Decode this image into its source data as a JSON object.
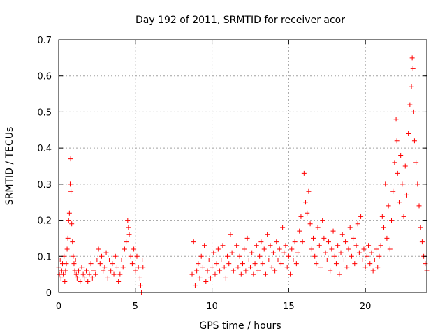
{
  "chart_data": {
    "type": "scatter",
    "title": "Day 192 of 2011, SRMTID for receiver acor",
    "xlabel": "GPS time / hours",
    "ylabel": "SRMTID / TECUs",
    "xlim": [
      0,
      24
    ],
    "ylim": [
      0,
      0.7
    ],
    "xticks": [
      0,
      5,
      10,
      15,
      20
    ],
    "yticks": [
      0,
      0.1,
      0.2,
      0.3,
      0.4,
      0.5,
      0.6,
      0.7
    ],
    "xtick_labels": [
      "0",
      "5",
      "10",
      "15",
      "20"
    ],
    "ytick_labels": [
      "0",
      "0.1",
      "0.2",
      "0.3",
      "0.4",
      "0.5",
      "0.6",
      "0.7"
    ],
    "grid": true,
    "marker": "plus",
    "marker_color": "#ff0000",
    "series": [
      {
        "name": "SRMTID",
        "points": [
          [
            0.0,
            0.07
          ],
          [
            0.05,
            0.05
          ],
          [
            0.1,
            0.09
          ],
          [
            0.15,
            0.04
          ],
          [
            0.2,
            0.06
          ],
          [
            0.25,
            0.08
          ],
          [
            0.3,
            0.05
          ],
          [
            0.35,
            0.1
          ],
          [
            0.4,
            0.03
          ],
          [
            0.45,
            0.06
          ],
          [
            0.5,
            0.08
          ],
          [
            0.55,
            0.12
          ],
          [
            0.6,
            0.15
          ],
          [
            0.65,
            0.2
          ],
          [
            0.7,
            0.22
          ],
          [
            0.75,
            0.3
          ],
          [
            0.78,
            0.37
          ],
          [
            0.8,
            0.28
          ],
          [
            0.85,
            0.19
          ],
          [
            0.9,
            0.14
          ],
          [
            0.95,
            0.1
          ],
          [
            1.0,
            0.08
          ],
          [
            1.05,
            0.06
          ],
          [
            1.1,
            0.09
          ],
          [
            1.15,
            0.05
          ],
          [
            1.2,
            0.04
          ],
          [
            1.3,
            0.06
          ],
          [
            1.4,
            0.03
          ],
          [
            1.5,
            0.07
          ],
          [
            1.6,
            0.05
          ],
          [
            1.7,
            0.04
          ],
          [
            1.8,
            0.06
          ],
          [
            1.9,
            0.03
          ],
          [
            2.0,
            0.05
          ],
          [
            2.1,
            0.08
          ],
          [
            2.2,
            0.04
          ],
          [
            2.3,
            0.06
          ],
          [
            2.4,
            0.05
          ],
          [
            2.5,
            0.09
          ],
          [
            2.6,
            0.12
          ],
          [
            2.7,
            0.08
          ],
          [
            2.8,
            0.1
          ],
          [
            2.9,
            0.06
          ],
          [
            3.0,
            0.07
          ],
          [
            3.1,
            0.11
          ],
          [
            3.2,
            0.04
          ],
          [
            3.3,
            0.09
          ],
          [
            3.4,
            0.06
          ],
          [
            3.5,
            0.08
          ],
          [
            3.6,
            0.05
          ],
          [
            3.7,
            0.1
          ],
          [
            3.8,
            0.07
          ],
          [
            3.9,
            0.03
          ],
          [
            4.0,
            0.05
          ],
          [
            4.1,
            0.09
          ],
          [
            4.2,
            0.07
          ],
          [
            4.3,
            0.12
          ],
          [
            4.4,
            0.14
          ],
          [
            4.5,
            0.2
          ],
          [
            4.55,
            0.18
          ],
          [
            4.6,
            0.16
          ],
          [
            4.7,
            0.1
          ],
          [
            4.8,
            0.08
          ],
          [
            4.9,
            0.12
          ],
          [
            5.0,
            0.06
          ],
          [
            5.1,
            0.1
          ],
          [
            5.2,
            0.07
          ],
          [
            5.3,
            0.04
          ],
          [
            5.35,
            0.02
          ],
          [
            5.4,
            0.0
          ],
          [
            5.45,
            0.09
          ],
          [
            5.5,
            0.07
          ],
          [
            8.7,
            0.05
          ],
          [
            8.8,
            0.14
          ],
          [
            8.9,
            0.02
          ],
          [
            9.0,
            0.06
          ],
          [
            9.1,
            0.08
          ],
          [
            9.2,
            0.04
          ],
          [
            9.3,
            0.1
          ],
          [
            9.4,
            0.07
          ],
          [
            9.5,
            0.13
          ],
          [
            9.6,
            0.03
          ],
          [
            9.7,
            0.06
          ],
          [
            9.8,
            0.09
          ],
          [
            9.9,
            0.04
          ],
          [
            10.0,
            0.07
          ],
          [
            10.1,
            0.11
          ],
          [
            10.2,
            0.05
          ],
          [
            10.3,
            0.08
          ],
          [
            10.4,
            0.12
          ],
          [
            10.5,
            0.06
          ],
          [
            10.6,
            0.09
          ],
          [
            10.7,
            0.13
          ],
          [
            10.8,
            0.07
          ],
          [
            10.9,
            0.04
          ],
          [
            11.0,
            0.1
          ],
          [
            11.1,
            0.08
          ],
          [
            11.2,
            0.16
          ],
          [
            11.3,
            0.11
          ],
          [
            11.4,
            0.06
          ],
          [
            11.5,
            0.09
          ],
          [
            11.6,
            0.13
          ],
          [
            11.7,
            0.07
          ],
          [
            11.8,
            0.1
          ],
          [
            11.9,
            0.05
          ],
          [
            12.0,
            0.08
          ],
          [
            12.1,
            0.12
          ],
          [
            12.2,
            0.06
          ],
          [
            12.3,
            0.15
          ],
          [
            12.4,
            0.09
          ],
          [
            12.5,
            0.07
          ],
          [
            12.6,
            0.11
          ],
          [
            12.7,
            0.05
          ],
          [
            12.8,
            0.08
          ],
          [
            12.9,
            0.13
          ],
          [
            13.0,
            0.06
          ],
          [
            13.1,
            0.1
          ],
          [
            13.2,
            0.14
          ],
          [
            13.3,
            0.08
          ],
          [
            13.4,
            0.12
          ],
          [
            13.5,
            0.05
          ],
          [
            13.6,
            0.16
          ],
          [
            13.7,
            0.09
          ],
          [
            13.8,
            0.13
          ],
          [
            13.9,
            0.07
          ],
          [
            14.0,
            0.11
          ],
          [
            14.1,
            0.06
          ],
          [
            14.2,
            0.14
          ],
          [
            14.3,
            0.09
          ],
          [
            14.4,
            0.12
          ],
          [
            14.5,
            0.08
          ],
          [
            14.6,
            0.18
          ],
          [
            14.7,
            0.11
          ],
          [
            14.8,
            0.13
          ],
          [
            14.9,
            0.07
          ],
          [
            15.0,
            0.1
          ],
          [
            15.1,
            0.05
          ],
          [
            15.2,
            0.12
          ],
          [
            15.3,
            0.09
          ],
          [
            15.4,
            0.14
          ],
          [
            15.5,
            0.08
          ],
          [
            15.6,
            0.11
          ],
          [
            15.7,
            0.17
          ],
          [
            15.8,
            0.21
          ],
          [
            15.9,
            0.14
          ],
          [
            16.0,
            0.33
          ],
          [
            16.1,
            0.25
          ],
          [
            16.2,
            0.22
          ],
          [
            16.3,
            0.28
          ],
          [
            16.4,
            0.19
          ],
          [
            16.5,
            0.12
          ],
          [
            16.6,
            0.15
          ],
          [
            16.7,
            0.1
          ],
          [
            16.8,
            0.08
          ],
          [
            16.9,
            0.18
          ],
          [
            17.0,
            0.13
          ],
          [
            17.1,
            0.07
          ],
          [
            17.2,
            0.2
          ],
          [
            17.3,
            0.15
          ],
          [
            17.4,
            0.11
          ],
          [
            17.5,
            0.09
          ],
          [
            17.6,
            0.14
          ],
          [
            17.7,
            0.06
          ],
          [
            17.8,
            0.12
          ],
          [
            17.9,
            0.17
          ],
          [
            18.0,
            0.1
          ],
          [
            18.1,
            0.08
          ],
          [
            18.2,
            0.13
          ],
          [
            18.3,
            0.05
          ],
          [
            18.4,
            0.11
          ],
          [
            18.5,
            0.16
          ],
          [
            18.6,
            0.09
          ],
          [
            18.7,
            0.14
          ],
          [
            18.8,
            0.07
          ],
          [
            18.9,
            0.12
          ],
          [
            19.0,
            0.18
          ],
          [
            19.1,
            0.1
          ],
          [
            19.2,
            0.15
          ],
          [
            19.3,
            0.08
          ],
          [
            19.4,
            0.13
          ],
          [
            19.5,
            0.19
          ],
          [
            19.6,
            0.11
          ],
          [
            19.7,
            0.21
          ],
          [
            19.8,
            0.09
          ],
          [
            19.9,
            0.12
          ],
          [
            20.0,
            0.07
          ],
          [
            20.1,
            0.1
          ],
          [
            20.2,
            0.13
          ],
          [
            20.3,
            0.08
          ],
          [
            20.4,
            0.11
          ],
          [
            20.5,
            0.06
          ],
          [
            20.6,
            0.09
          ],
          [
            20.7,
            0.12
          ],
          [
            20.8,
            0.07
          ],
          [
            20.9,
            0.1
          ],
          [
            21.0,
            0.13
          ],
          [
            21.1,
            0.21
          ],
          [
            21.2,
            0.18
          ],
          [
            21.3,
            0.3
          ],
          [
            21.4,
            0.15
          ],
          [
            21.5,
            0.24
          ],
          [
            21.6,
            0.12
          ],
          [
            21.7,
            0.2
          ],
          [
            21.8,
            0.28
          ],
          [
            21.9,
            0.36
          ],
          [
            22.0,
            0.48
          ],
          [
            22.05,
            0.42
          ],
          [
            22.1,
            0.33
          ],
          [
            22.2,
            0.25
          ],
          [
            22.3,
            0.38
          ],
          [
            22.4,
            0.3
          ],
          [
            22.5,
            0.21
          ],
          [
            22.6,
            0.35
          ],
          [
            22.7,
            0.27
          ],
          [
            22.8,
            0.44
          ],
          [
            22.9,
            0.52
          ],
          [
            23.0,
            0.57
          ],
          [
            23.05,
            0.65
          ],
          [
            23.1,
            0.62
          ],
          [
            23.15,
            0.5
          ],
          [
            23.2,
            0.42
          ],
          [
            23.3,
            0.36
          ],
          [
            23.4,
            0.3
          ],
          [
            23.5,
            0.24
          ],
          [
            23.6,
            0.18
          ],
          [
            23.7,
            0.14
          ],
          [
            23.8,
            0.1
          ],
          [
            23.9,
            0.08
          ],
          [
            24.0,
            0.06
          ]
        ]
      }
    ]
  }
}
